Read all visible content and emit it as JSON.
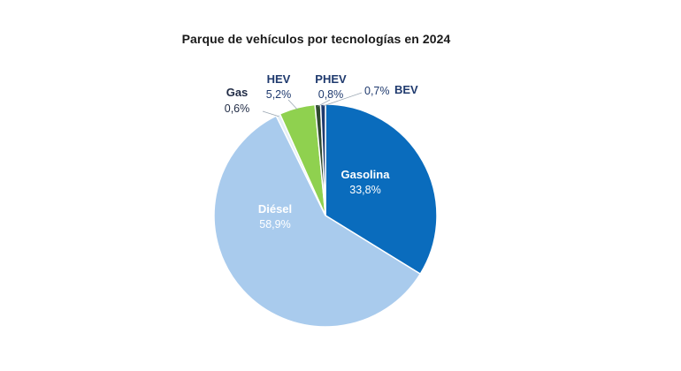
{
  "chart_data": {
    "type": "pie",
    "title": "Parque de vehículos por tecnologías en 2024",
    "legend": "none",
    "slices": [
      {
        "name": "Gasolina",
        "value": 33.8,
        "label": "33,8%",
        "color": "#0a6cbd",
        "name_color": "#ffffff",
        "value_color": "#ffffff"
      },
      {
        "name": "Diésel",
        "value": 58.9,
        "label": "58,9%",
        "color": "#a9cbed",
        "name_color": "#ffffff",
        "value_color": "#ffffff"
      },
      {
        "name": "Gas",
        "value": 0.6,
        "label": "0,6%",
        "color": "#e4eef5",
        "name_color": "#1f2a44",
        "value_color": "#1f2a44"
      },
      {
        "name": "HEV",
        "value": 5.2,
        "label": "5,2%",
        "color": "#8fd14f",
        "name_color": "#1f3a6e",
        "value_color": "#1f3a6e"
      },
      {
        "name": "PHEV",
        "value": 0.8,
        "label": "0,8%",
        "color": "#2f4a2f",
        "name_color": "#1f3a6e",
        "value_color": "#1f3a6e"
      },
      {
        "name": "BEV",
        "value": 0.7,
        "label": "0,7%",
        "color": "#1f3a6e",
        "name_color": "#1f3a6e",
        "value_color": "#1f3a6e"
      }
    ]
  }
}
